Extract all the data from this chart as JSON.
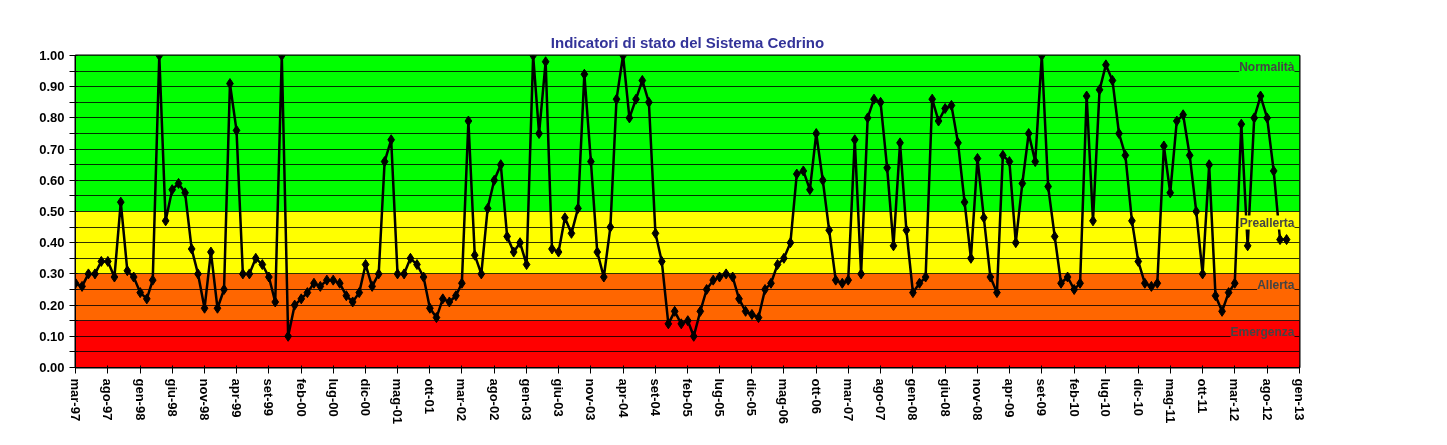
{
  "chart_data": {
    "type": "line",
    "title": "Indicatori di stato del Sistema Cedrino",
    "x": [
      "1997-03",
      "1997-04",
      "1997-05",
      "1997-06",
      "1997-07",
      "1997-08",
      "1997-09",
      "1997-10",
      "1997-11",
      "1997-12",
      "1998-01",
      "1998-02",
      "1998-03",
      "1998-04",
      "1998-05",
      "1998-06",
      "1998-07",
      "1998-08",
      "1998-09",
      "1998-10",
      "1998-11",
      "1998-12",
      "1999-01",
      "1999-02",
      "1999-03",
      "1999-04",
      "1999-05",
      "1999-06",
      "1999-07",
      "1999-08",
      "1999-09",
      "1999-10",
      "1999-11",
      "1999-12",
      "2000-01",
      "2000-02",
      "2000-03",
      "2000-04",
      "2000-05",
      "2000-06",
      "2000-07",
      "2000-08",
      "2000-09",
      "2000-10",
      "2000-11",
      "2000-12",
      "2001-01",
      "2001-02",
      "2001-03",
      "2001-04",
      "2001-05",
      "2001-06",
      "2001-07",
      "2001-08",
      "2001-09",
      "2001-10",
      "2001-11",
      "2001-12",
      "2002-01",
      "2002-02",
      "2002-03",
      "2002-04",
      "2002-05",
      "2002-06",
      "2002-07",
      "2002-08",
      "2002-09",
      "2002-10",
      "2002-11",
      "2002-12",
      "2003-01",
      "2003-02",
      "2003-03",
      "2003-04",
      "2003-05",
      "2003-06",
      "2003-07",
      "2003-08",
      "2003-09",
      "2003-10",
      "2003-11",
      "2003-12",
      "2004-01",
      "2004-02",
      "2004-03",
      "2004-04",
      "2004-05",
      "2004-06",
      "2004-07",
      "2004-08",
      "2004-09",
      "2004-10",
      "2004-11",
      "2004-12",
      "2005-01",
      "2005-02",
      "2005-03",
      "2005-04",
      "2005-05",
      "2005-06",
      "2005-07",
      "2005-08",
      "2005-09",
      "2005-10",
      "2005-11",
      "2005-12",
      "2006-01",
      "2006-02",
      "2006-03",
      "2006-04",
      "2006-05",
      "2006-06",
      "2006-07",
      "2006-08",
      "2006-09",
      "2006-10",
      "2006-11",
      "2006-12",
      "2007-01",
      "2007-02",
      "2007-03",
      "2007-04",
      "2007-05",
      "2007-06",
      "2007-07",
      "2007-08",
      "2007-09",
      "2007-10",
      "2007-11",
      "2007-12",
      "2008-01",
      "2008-02",
      "2008-03",
      "2008-04",
      "2008-05",
      "2008-06",
      "2008-07",
      "2008-08",
      "2008-09",
      "2008-10",
      "2008-11",
      "2008-12",
      "2009-01",
      "2009-02",
      "2009-03",
      "2009-04",
      "2009-05",
      "2009-06",
      "2009-07",
      "2009-08",
      "2009-09",
      "2009-10",
      "2009-11",
      "2009-12",
      "2010-01",
      "2010-02",
      "2010-03",
      "2010-04",
      "2010-05",
      "2010-06",
      "2010-07",
      "2010-08",
      "2010-09",
      "2010-10",
      "2010-11",
      "2010-12",
      "2011-01",
      "2011-02",
      "2011-03",
      "2011-04",
      "2011-05",
      "2011-06",
      "2011-07",
      "2011-08",
      "2011-09",
      "2011-10",
      "2011-11",
      "2011-12",
      "2012-01",
      "2012-02",
      "2012-03",
      "2012-04",
      "2012-05",
      "2012-06",
      "2012-07",
      "2012-08",
      "2012-09",
      "2012-10",
      "2012-11"
    ],
    "series": [
      {
        "color": "#000000",
        "values": [
          0.27,
          0.26,
          0.3,
          0.3,
          0.34,
          0.34,
          0.29,
          0.53,
          0.31,
          0.29,
          0.24,
          0.22,
          0.28,
          1.0,
          0.47,
          0.57,
          0.59,
          0.56,
          0.38,
          0.3,
          0.19,
          0.37,
          0.19,
          0.25,
          0.91,
          0.76,
          0.3,
          0.3,
          0.35,
          0.33,
          0.29,
          0.21,
          1.0,
          0.1,
          0.2,
          0.22,
          0.24,
          0.27,
          0.26,
          0.28,
          0.28,
          0.27,
          0.23,
          0.21,
          0.24,
          0.33,
          0.26,
          0.3,
          0.66,
          0.73,
          0.3,
          0.3,
          0.35,
          0.33,
          0.29,
          0.19,
          0.16,
          0.22,
          0.21,
          0.23,
          0.27,
          0.79,
          0.36,
          0.3,
          0.51,
          0.6,
          0.65,
          0.42,
          0.37,
          0.4,
          0.33,
          1.0,
          0.75,
          0.98,
          0.38,
          0.37,
          0.48,
          0.43,
          0.51,
          0.94,
          0.66,
          0.37,
          0.29,
          0.45,
          0.86,
          1.0,
          0.8,
          0.86,
          0.92,
          0.85,
          0.43,
          0.34,
          0.14,
          0.18,
          0.14,
          0.15,
          0.1,
          0.18,
          0.25,
          0.28,
          0.29,
          0.3,
          0.29,
          0.22,
          0.18,
          0.17,
          0.16,
          0.25,
          0.27,
          0.33,
          0.35,
          0.4,
          0.62,
          0.63,
          0.57,
          0.75,
          0.6,
          0.44,
          0.28,
          0.27,
          0.28,
          0.73,
          0.3,
          0.8,
          0.86,
          0.85,
          0.64,
          0.39,
          0.72,
          0.44,
          0.24,
          0.27,
          0.29,
          0.86,
          0.79,
          0.83,
          0.84,
          0.72,
          0.53,
          0.35,
          0.67,
          0.48,
          0.29,
          0.24,
          0.68,
          0.66,
          0.4,
          0.59,
          0.75,
          0.66,
          1.0,
          0.58,
          0.42,
          0.27,
          0.29,
          0.25,
          0.27,
          0.87,
          0.47,
          0.89,
          0.97,
          0.92,
          0.75,
          0.68,
          0.47,
          0.34,
          0.27,
          0.26,
          0.27,
          0.71,
          0.56,
          0.79,
          0.81,
          0.68,
          0.5,
          0.3,
          0.65,
          0.23,
          0.18,
          0.24,
          0.27,
          0.78,
          0.39,
          0.8,
          0.87,
          0.8,
          0.63,
          0.41,
          0.41
        ]
      }
    ],
    "marker": "diamond",
    "grid": "y",
    "xlim": [
      "1997-03",
      "2013-01"
    ],
    "xticks": [
      {
        "value": "1997-03",
        "label": "mar-97"
      },
      {
        "value": "1997-08",
        "label": "ago-97"
      },
      {
        "value": "1998-01",
        "label": "gen-98"
      },
      {
        "value": "1998-06",
        "label": "giu-98"
      },
      {
        "value": "1998-11",
        "label": "nov-98"
      },
      {
        "value": "1999-04",
        "label": "apr-99"
      },
      {
        "value": "1999-09",
        "label": "set-99"
      },
      {
        "value": "2000-02",
        "label": "feb-00"
      },
      {
        "value": "2000-07",
        "label": "lug-00"
      },
      {
        "value": "2000-12",
        "label": "dic-00"
      },
      {
        "value": "2001-05",
        "label": "mag-01"
      },
      {
        "value": "2001-10",
        "label": "ott-01"
      },
      {
        "value": "2002-03",
        "label": "mar-02"
      },
      {
        "value": "2002-08",
        "label": "ago-02"
      },
      {
        "value": "2003-01",
        "label": "gen-03"
      },
      {
        "value": "2003-06",
        "label": "giu-03"
      },
      {
        "value": "2003-11",
        "label": "nov-03"
      },
      {
        "value": "2004-04",
        "label": "apr-04"
      },
      {
        "value": "2004-09",
        "label": "set-04"
      },
      {
        "value": "2005-02",
        "label": "feb-05"
      },
      {
        "value": "2005-07",
        "label": "lug-05"
      },
      {
        "value": "2005-12",
        "label": "dic-05"
      },
      {
        "value": "2006-05",
        "label": "mag-06"
      },
      {
        "value": "2006-10",
        "label": "ott-06"
      },
      {
        "value": "2007-03",
        "label": "mar-07"
      },
      {
        "value": "2007-08",
        "label": "ago-07"
      },
      {
        "value": "2008-01",
        "label": "gen-08"
      },
      {
        "value": "2008-06",
        "label": "giu-08"
      },
      {
        "value": "2008-11",
        "label": "nov-08"
      },
      {
        "value": "2009-04",
        "label": "apr-09"
      },
      {
        "value": "2009-09",
        "label": "set-09"
      },
      {
        "value": "2010-02",
        "label": "feb-10"
      },
      {
        "value": "2010-07",
        "label": "lug-10"
      },
      {
        "value": "2010-12",
        "label": "dic-10"
      },
      {
        "value": "2011-05",
        "label": "mag-11"
      },
      {
        "value": "2011-10",
        "label": "ott-11"
      },
      {
        "value": "2012-03",
        "label": "mar-12"
      },
      {
        "value": "2012-08",
        "label": "ago-12"
      },
      {
        "value": "2013-01",
        "label": "gen-13"
      }
    ],
    "ylim": [
      0,
      1
    ],
    "yticks": [
      {
        "value": 0,
        "label": "0.00"
      },
      {
        "value": 0.05,
        "label": null
      },
      {
        "value": 0.1,
        "label": "0.10"
      },
      {
        "value": 0.15,
        "label": null
      },
      {
        "value": 0.2,
        "label": "0.20"
      },
      {
        "value": 0.25,
        "label": null
      },
      {
        "value": 0.3,
        "label": "0.30"
      },
      {
        "value": 0.35,
        "label": null
      },
      {
        "value": 0.4,
        "label": "0.40"
      },
      {
        "value": 0.45,
        "label": null
      },
      {
        "value": 0.5,
        "label": "0.50"
      },
      {
        "value": 0.55,
        "label": null
      },
      {
        "value": 0.6,
        "label": "0.60"
      },
      {
        "value": 0.65,
        "label": null
      },
      {
        "value": 0.7,
        "label": "0.70"
      },
      {
        "value": 0.75,
        "label": null
      },
      {
        "value": 0.8,
        "label": "0.80"
      },
      {
        "value": 0.85,
        "label": null
      },
      {
        "value": 0.9,
        "label": "0.90"
      },
      {
        "value": 0.95,
        "label": null
      },
      {
        "value": 1,
        "label": "1.00"
      }
    ],
    "bands": [
      {
        "axis": "y",
        "from": 0.5,
        "to": 1.0,
        "label": "Normalità",
        "color": "#00ff00"
      },
      {
        "axis": "y",
        "from": 0.3,
        "to": 0.5,
        "label": "Preallerta",
        "color": "#ffff00"
      },
      {
        "axis": "y",
        "from": 0.15,
        "to": 0.3,
        "label": "Allerta",
        "color": "#ff6600"
      },
      {
        "axis": "y",
        "from": 0.0,
        "to": 0.15,
        "label": "Emergenza",
        "color": "#ff0000"
      }
    ]
  }
}
